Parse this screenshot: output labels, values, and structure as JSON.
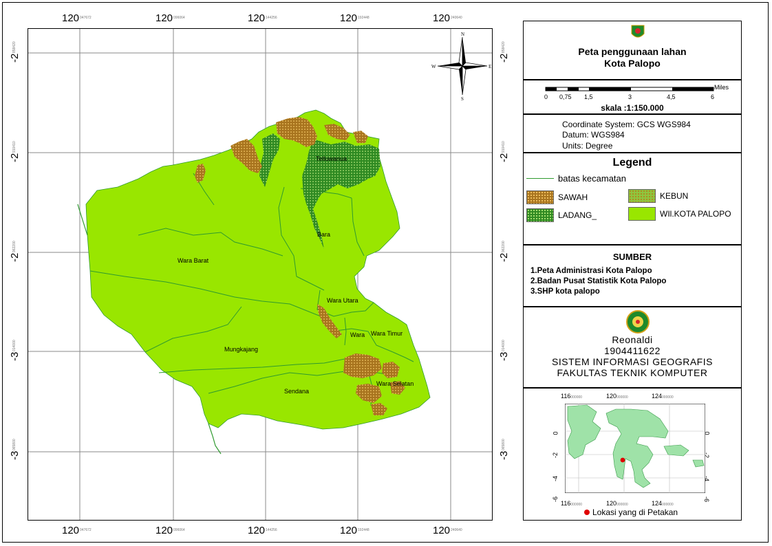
{
  "map": {
    "top_ticks": [
      {
        "main": "120",
        "minor": "047672"
      },
      {
        "main": "120",
        "minor": "096064"
      },
      {
        "main": "120",
        "minor": "144256"
      },
      {
        "main": "120",
        "minor": "192448"
      },
      {
        "main": "120",
        "minor": "240640"
      }
    ],
    "left_ticks": [
      {
        "main": "-2",
        "minor": "858420"
      },
      {
        "main": "-2",
        "minor": "910410"
      },
      {
        "main": "-2",
        "minor": "962200"
      },
      {
        "main": "-3",
        "minor": "014000"
      },
      {
        "main": "-3",
        "minor": "065800"
      }
    ],
    "districts": [
      "Telluwanua",
      "Bara",
      "Wara Barat",
      "Wara Utara",
      "Wara",
      "Wara Timur",
      "Mungkajang",
      "Wara Selatan",
      "Sendana"
    ],
    "compass": {
      "n": "N",
      "s": "S",
      "e": "E",
      "w": "W"
    }
  },
  "title": {
    "line1": "Peta penggunaan lahan",
    "line2": "Kota Palopo",
    "logo": "palopo-emblem-icon"
  },
  "scale": {
    "ticks": [
      "0",
      "0,75",
      "1,5",
      "3",
      "4,5",
      "6"
    ],
    "unit": "Miles",
    "text": "skala :1:150.000"
  },
  "coords": {
    "system": "Coordinate System: GCS WGS984",
    "datum": "Datum: WGS984",
    "units": "Units: Degree"
  },
  "legend": {
    "title": "Legend",
    "boundary": "batas kecamatan",
    "items": [
      {
        "label": "SAWAH",
        "color": "#a8741e"
      },
      {
        "label": "KEBUN",
        "color": "#8ec63f"
      },
      {
        "label": "LADANG_",
        "color": "#2f8a22"
      },
      {
        "label": "WIl.KOTA PALOPO",
        "color": "#99e600"
      }
    ]
  },
  "sources": {
    "title": "SUMBER",
    "items": [
      "1.Peta Administrasi Kota Palopo",
      "2.Badan Pusat Statistik Kota Palopo",
      "3.SHP kota palopo"
    ]
  },
  "author": {
    "name": "Reonaldi",
    "id": "1904411622",
    "dept": "SISTEM INFORMASI GEOGRAFIS",
    "faculty": "FAKULTAS TEKNIK KOMPUTER",
    "logo": "university-emblem-icon"
  },
  "inset": {
    "top_ticks": [
      {
        "main": "116",
        "minor": "000000"
      },
      {
        "main": "120",
        "minor": "000000"
      },
      {
        "main": "124",
        "minor": "000000"
      }
    ],
    "bottom_ticks": [
      {
        "main": "116",
        "minor": "000000"
      },
      {
        "main": "120",
        "minor": "000000"
      },
      {
        "main": "124",
        "minor": "000000"
      }
    ],
    "side_ticks": [
      "0",
      "-2",
      "-4",
      "-6"
    ],
    "caption": "Lokasi yang di Petakan",
    "marker_color": "#e00000"
  }
}
